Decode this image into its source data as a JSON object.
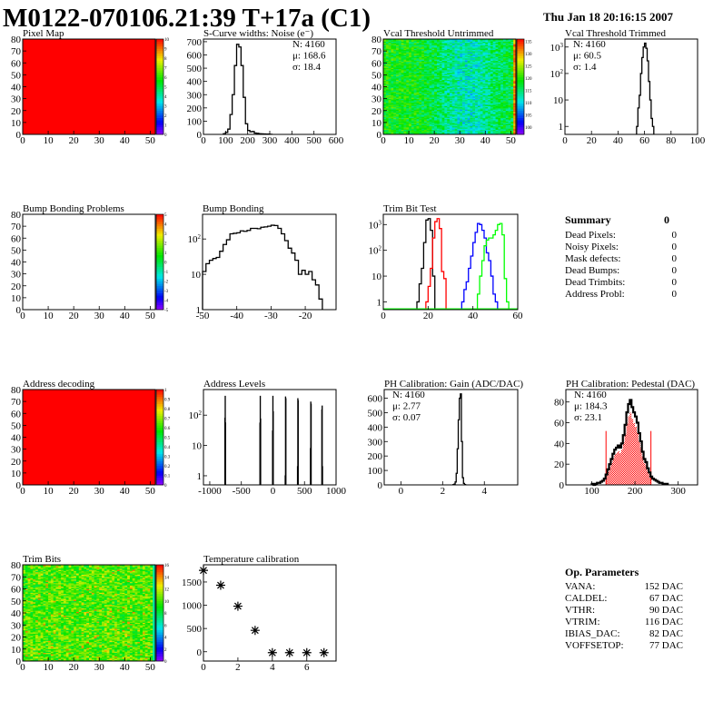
{
  "header": {
    "title": "M0122-070106.21:39 T+17a (C1)",
    "date": "Thu Jan 18 20:16:15 2007"
  },
  "summary": {
    "title": "Summary",
    "total": "0",
    "rows": [
      {
        "label": "Dead Pixels:",
        "value": "0"
      },
      {
        "label": "Noisy Pixels:",
        "value": "0"
      },
      {
        "label": "Mask defects:",
        "value": "0"
      },
      {
        "label": "Dead Bumps:",
        "value": "0"
      },
      {
        "label": "Dead Trimbits:",
        "value": "0"
      },
      {
        "label": "Address Probl:",
        "value": "0"
      }
    ]
  },
  "op_params": {
    "title": "Op. Parameters",
    "rows": [
      {
        "label": "VANA:",
        "value": "152 DAC"
      },
      {
        "label": "CALDEL:",
        "value": "67 DAC"
      },
      {
        "label": "VTHR:",
        "value": "90 DAC"
      },
      {
        "label": "VTRIM:",
        "value": "116 DAC"
      },
      {
        "label": "IBIAS_DAC:",
        "value": "82 DAC"
      },
      {
        "label": "VOFFSETOP:",
        "value": "77 DAC"
      }
    ]
  },
  "colors": {
    "palette": "rainbow",
    "line": "#000000",
    "accent_red": "#ff0000",
    "blue": "#0000ff",
    "green": "#00ff00"
  },
  "chart_data": [
    {
      "id": "pixel",
      "type": "heatmap",
      "title": "Pixel Map",
      "xlim": [
        0,
        52
      ],
      "ylim": [
        0,
        80
      ],
      "zlim": [
        0,
        10
      ],
      "xticks": [
        "0",
        "10",
        "20",
        "30",
        "40",
        "50"
      ],
      "yticks": [
        "0",
        "10",
        "20",
        "30",
        "40",
        "50",
        "60",
        "70",
        "80"
      ],
      "zticks": [
        "0",
        "1",
        "2",
        "3",
        "4",
        "5",
        "6",
        "7",
        "8",
        "9",
        "10"
      ],
      "fill": "uniform",
      "value": 10
    },
    {
      "id": "scurve",
      "type": "bar",
      "title": "S-Curve widths: Noise (e⁻)",
      "xlim": [
        0,
        600
      ],
      "ylim": [
        0,
        720
      ],
      "xticks": [
        "0",
        "100",
        "200",
        "300",
        "400",
        "500",
        "600"
      ],
      "yticks": [
        "0",
        "100",
        "200",
        "300",
        "400",
        "500",
        "600",
        "700"
      ],
      "stats": [
        "N: 4160",
        "μ: 168.6",
        "σ: 18.4"
      ],
      "series": [
        {
          "x0": 90,
          "w": 10,
          "color": "#000000",
          "values": [
            5,
            15,
            40,
            150,
            300,
            520,
            680,
            660,
            520,
            280,
            80,
            30,
            20,
            22,
            10,
            8,
            5,
            4,
            3,
            2,
            2,
            1
          ]
        }
      ]
    },
    {
      "id": "vcalU",
      "type": "heatmap",
      "title": "Vcal Threshold Untrimmed",
      "xlim": [
        0,
        52
      ],
      "ylim": [
        0,
        80
      ],
      "zlim": [
        97,
        136
      ],
      "xticks": [
        "0",
        "10",
        "20",
        "30",
        "40",
        "50"
      ],
      "yticks": [
        "0",
        "10",
        "20",
        "30",
        "40",
        "50",
        "60",
        "70",
        "80"
      ],
      "zticks": [
        "100",
        "105",
        "110",
        "115",
        "120",
        "125",
        "130",
        "135"
      ],
      "fill": "map",
      "mean": 115
    },
    {
      "id": "vcalT",
      "type": "bar",
      "title": "Vcal Threshold Trimmed",
      "xlim": [
        0,
        100
      ],
      "ylim": [
        0.5,
        2000
      ],
      "log": true,
      "xticks": [
        "0",
        "20",
        "40",
        "60",
        "80",
        "100"
      ],
      "yticks": [
        "1",
        "10",
        "10^2",
        "10^3"
      ],
      "stats": [
        "N: 4160",
        "μ: 60.5",
        "σ:  1.4"
      ],
      "series": [
        {
          "x0": 54,
          "w": 1,
          "color": "#000000",
          "values": [
            1,
            5,
            15,
            100,
            400,
            1000,
            1400,
            900,
            300,
            50,
            10,
            2,
            1
          ]
        }
      ]
    },
    {
      "id": "bump2d",
      "type": "heatmap",
      "title": "Bump Bonding Problems",
      "xlim": [
        0,
        52
      ],
      "ylim": [
        0,
        80
      ],
      "zlim": [
        -5,
        5
      ],
      "xticks": [
        "0",
        "10",
        "20",
        "30",
        "40",
        "50"
      ],
      "yticks": [
        "0",
        "10",
        "20",
        "30",
        "40",
        "50",
        "60",
        "70",
        "80"
      ],
      "zticks": [
        "-5",
        "-4",
        "-3",
        "-2",
        "-1",
        "0",
        "1",
        "2",
        "3",
        "4",
        "5"
      ],
      "fill": "empty"
    },
    {
      "id": "bump",
      "type": "bar",
      "title": "Bump Bonding",
      "xlim": [
        -50,
        -11
      ],
      "ylim": [
        1,
        500
      ],
      "log": true,
      "xticks": [
        "-50",
        "-40",
        "-30",
        "-20"
      ],
      "yticks": [
        "1",
        "10",
        "10^2"
      ],
      "series": [
        {
          "x0": -50,
          "w": 1,
          "color": "#000000",
          "values": [
            12,
            20,
            25,
            28,
            30,
            45,
            70,
            95,
            140,
            145,
            150,
            170,
            165,
            175,
            200,
            200,
            195,
            215,
            220,
            230,
            245,
            240,
            200,
            140,
            90,
            55,
            40,
            25,
            10,
            13,
            10,
            12,
            7,
            5,
            2
          ]
        }
      ]
    },
    {
      "id": "trim",
      "type": "bar",
      "title": "Trim Bit Test",
      "xlim": [
        0,
        60
      ],
      "ylim": [
        0.5,
        2500
      ],
      "log": true,
      "xticks": [
        "0",
        "20",
        "40",
        "60"
      ],
      "yticks": [
        "1",
        "10",
        "10^2",
        "10^3"
      ],
      "series": [
        {
          "x0": 15,
          "w": 1,
          "color": "#000000",
          "values": [
            1,
            5,
            20,
            200,
            1500,
            1700,
            600,
            10
          ]
        },
        {
          "x0": 19,
          "w": 1,
          "color": "#ff0000",
          "values": [
            1,
            4,
            20,
            300,
            1300,
            1700,
            700,
            15,
            8
          ]
        },
        {
          "x0": 35,
          "w": 1,
          "color": "#0000ff",
          "values": [
            1,
            3,
            6,
            20,
            60,
            200,
            500,
            1100,
            1000,
            600,
            300,
            80,
            40,
            10,
            2,
            1
          ]
        },
        {
          "x0": 42,
          "w": 1,
          "color": "#00ff00",
          "values": [
            2,
            10,
            40,
            150,
            250,
            300,
            300,
            400,
            600,
            1000,
            1100,
            400,
            8,
            1
          ]
        }
      ]
    },
    {
      "id": "addr2d",
      "type": "heatmap",
      "title": "Address decoding",
      "xlim": [
        0,
        52
      ],
      "ylim": [
        0,
        80
      ],
      "zlim": [
        0,
        1
      ],
      "xticks": [
        "0",
        "10",
        "20",
        "30",
        "40",
        "50"
      ],
      "yticks": [
        "0",
        "10",
        "20",
        "30",
        "40",
        "50",
        "60",
        "70",
        "80"
      ],
      "zticks": [
        "0",
        "0.1",
        "0.2",
        "0.3",
        "0.4",
        "0.5",
        "0.6",
        "0.7",
        "0.8",
        "0.9",
        "1"
      ],
      "fill": "uniform",
      "value": 1
    },
    {
      "id": "addrLev",
      "type": "bar",
      "title": "Address Levels",
      "xlim": [
        -1100,
        1000
      ],
      "ylim": [
        0.5,
        700
      ],
      "log": true,
      "xticks": [
        "-1000",
        "-500",
        "0",
        "500",
        "1000"
      ],
      "yticks": [
        "1",
        "10",
        "10^2"
      ],
      "spikes": {
        "w": 5,
        "color": "#000000",
        "points": [
          [
            -760,
            80
          ],
          [
            -755,
            420
          ],
          [
            -750,
            55
          ],
          [
            -205,
            55
          ],
          [
            -200,
            420
          ],
          [
            -195,
            75
          ],
          [
            -5,
            30
          ],
          [
            0,
            420
          ],
          [
            5,
            130
          ],
          [
            195,
            1
          ],
          [
            200,
            400
          ],
          [
            205,
            350
          ],
          [
            390,
            2
          ],
          [
            395,
            350
          ],
          [
            400,
            300
          ],
          [
            595,
            8
          ],
          [
            600,
            270
          ],
          [
            605,
            230
          ],
          [
            775,
            150
          ],
          [
            780,
            200
          ],
          [
            785,
            2
          ]
        ]
      }
    },
    {
      "id": "gain",
      "type": "bar",
      "title": "PH Calibration: Gain (ADC/DAC)",
      "xlim": [
        -0.8,
        5.6
      ],
      "ylim": [
        0,
        660
      ],
      "xticks": [
        "0",
        "2",
        "4"
      ],
      "yticks": [
        "0",
        "100",
        "200",
        "300",
        "400",
        "500",
        "600"
      ],
      "stats": [
        "N: 4160",
        "μ: 2.77",
        "σ: 0.07"
      ],
      "series": [
        {
          "x0": 2.5,
          "w": 0.05,
          "color": "#000000",
          "values": [
            2,
            5,
            20,
            80,
            250,
            450,
            600,
            630,
            300,
            50,
            10,
            2
          ]
        }
      ]
    },
    {
      "id": "ped",
      "type": "bar",
      "title": "PH Calibration: Pedestal (DAC)",
      "xlim": [
        40,
        345
      ],
      "ylim": [
        0,
        92
      ],
      "xticks": [
        "100",
        "200",
        "300"
      ],
      "yticks": [
        "0",
        "20",
        "40",
        "60",
        "80"
      ],
      "stats": [
        "N: 4160",
        "μ: 184.3",
        "σ: 23.1"
      ],
      "fit_range": [
        133,
        237
      ],
      "series": [
        {
          "x0": 100,
          "w": 4,
          "color": "#000000",
          "values": [
            1,
            0,
            1,
            2,
            2,
            3,
            4,
            6,
            10,
            15,
            20,
            25,
            30,
            34,
            36,
            38,
            36,
            40,
            48,
            58,
            70,
            78,
            82,
            75,
            70,
            66,
            60,
            50,
            42,
            32,
            25,
            22,
            16,
            12,
            8,
            6,
            5,
            4,
            3,
            2,
            2,
            1,
            1,
            1
          ]
        }
      ]
    },
    {
      "id": "trimbits",
      "type": "heatmap",
      "title": "Trim Bits",
      "xlim": [
        0,
        52
      ],
      "ylim": [
        0,
        80
      ],
      "zlim": [
        0,
        16
      ],
      "xticks": [
        "0",
        "10",
        "20",
        "30",
        "40",
        "50"
      ],
      "yticks": [
        "0",
        "10",
        "20",
        "30",
        "40",
        "50",
        "60",
        "70",
        "80"
      ],
      "zticks": [
        "0",
        "2",
        "4",
        "6",
        "8",
        "10",
        "12",
        "14",
        "16"
      ],
      "fill": "map",
      "mean": 10
    },
    {
      "id": "temp",
      "type": "scatter",
      "title": "Temperature calibration",
      "xlim": [
        0,
        7.7
      ],
      "ylim": [
        -200,
        1870
      ],
      "xticks": [
        "0",
        "2",
        "4",
        "6"
      ],
      "yticks": [
        "0",
        "500",
        "1000",
        "1500"
      ],
      "points": [
        [
          0,
          1750
        ],
        [
          1,
          1430
        ],
        [
          2,
          980
        ],
        [
          3,
          460
        ],
        [
          4,
          -20
        ],
        [
          5,
          -20
        ],
        [
          6,
          -20
        ],
        [
          7,
          -20
        ]
      ]
    }
  ]
}
